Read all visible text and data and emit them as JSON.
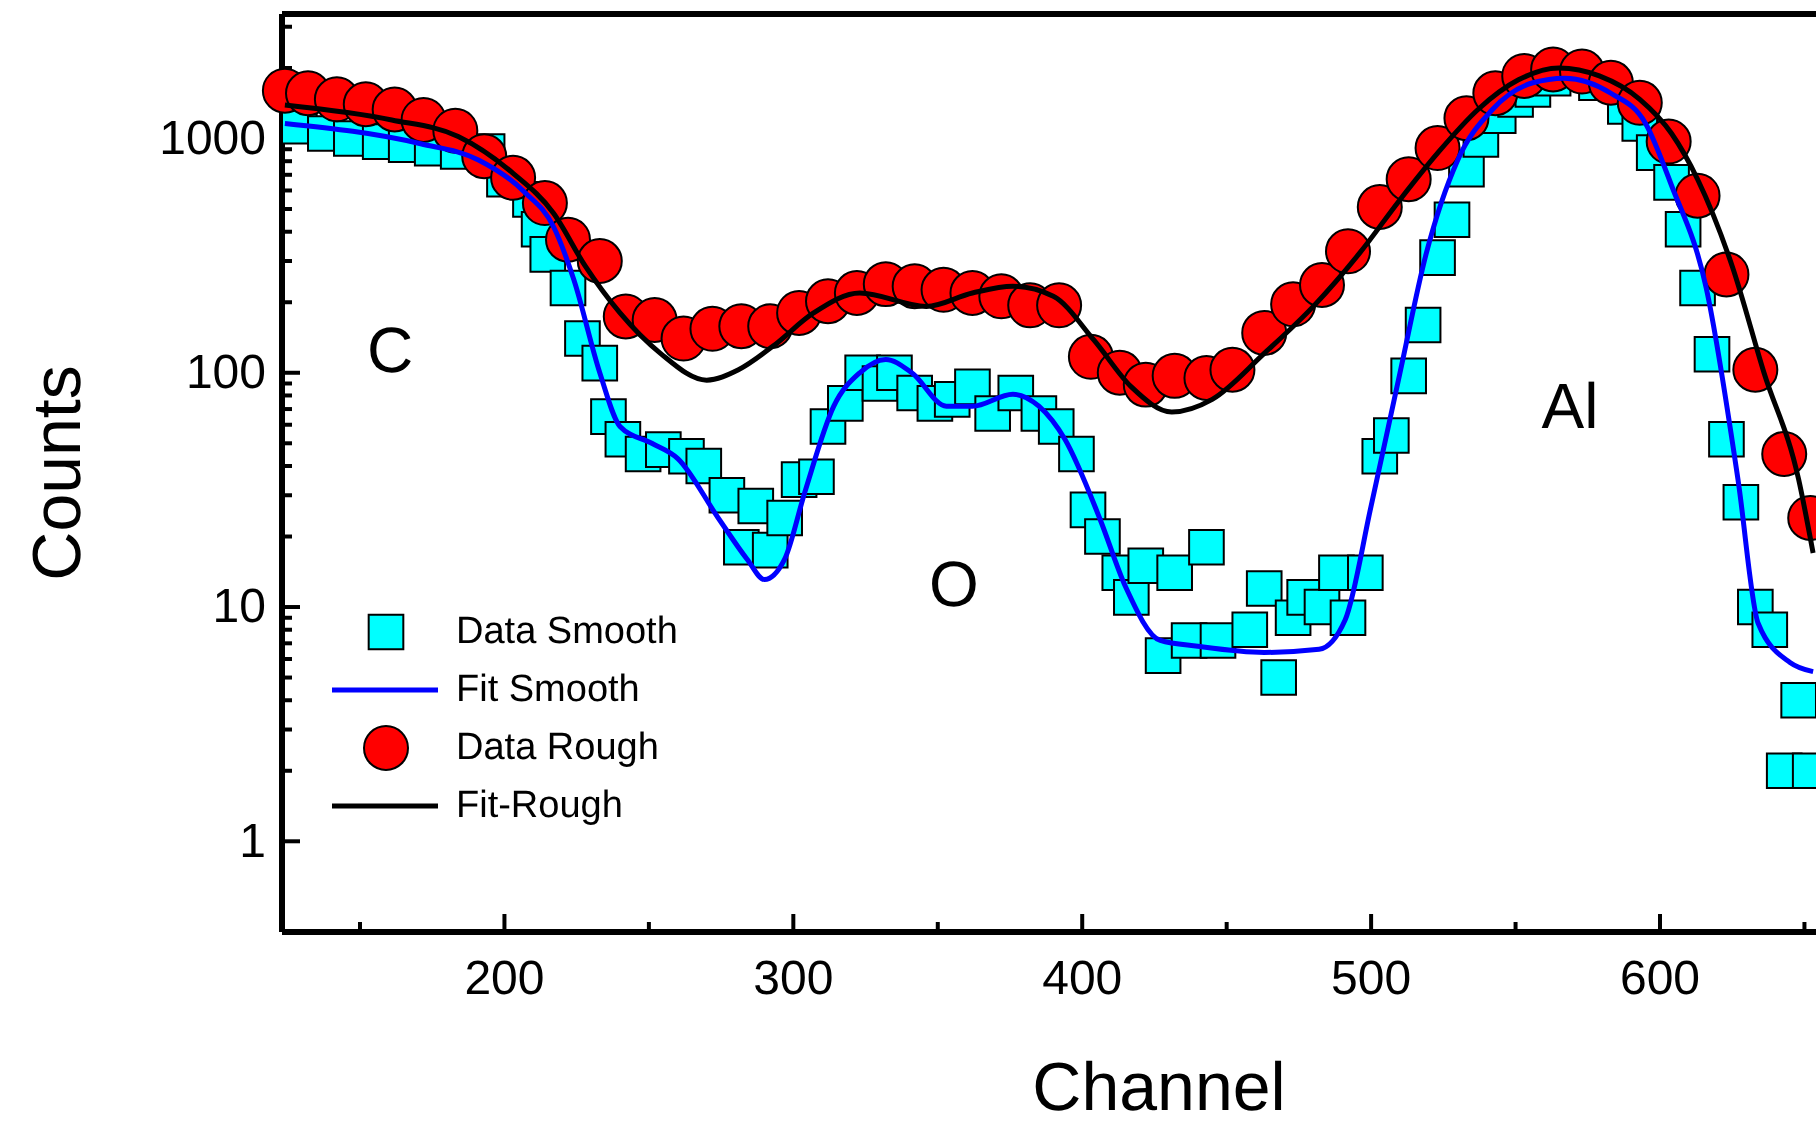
{
  "chart_data": {
    "type": "scatter",
    "xlabel": "Channel",
    "ylabel": "Counts",
    "log": "y",
    "grid": false,
    "legend": "bottom left",
    "xlim": [
      123,
      654
    ],
    "ylim": [
      0.41,
      3400
    ],
    "xticks": [
      {
        "value": 150,
        "label": null
      },
      200,
      {
        "value": 250,
        "label": null
      },
      300,
      {
        "value": 350,
        "label": null
      },
      400,
      {
        "value": 450,
        "label": null
      },
      500,
      {
        "value": 550,
        "label": null
      },
      600,
      {
        "value": 650,
        "label": null
      }
    ],
    "yticks": [
      1,
      {
        "value": 2,
        "label": null
      },
      {
        "value": 3,
        "label": null
      },
      {
        "value": 4,
        "label": null
      },
      {
        "value": 5,
        "label": null
      },
      {
        "value": 6,
        "label": null
      },
      {
        "value": 7,
        "label": null
      },
      {
        "value": 8,
        "label": null
      },
      {
        "value": 9,
        "label": null
      },
      10,
      {
        "value": 20,
        "label": null
      },
      {
        "value": 30,
        "label": null
      },
      {
        "value": 40,
        "label": null
      },
      {
        "value": 50,
        "label": null
      },
      {
        "value": 60,
        "label": null
      },
      {
        "value": 70,
        "label": null
      },
      {
        "value": 80,
        "label": null
      },
      {
        "value": 90,
        "label": null
      },
      100,
      {
        "value": 200,
        "label": null
      },
      {
        "value": 300,
        "label": null
      },
      {
        "value": 400,
        "label": null
      },
      {
        "value": 500,
        "label": null
      },
      {
        "value": 600,
        "label": null
      },
      {
        "value": 700,
        "label": null
      },
      {
        "value": 800,
        "label": null
      },
      {
        "value": 900,
        "label": null
      },
      1000,
      {
        "value": 2000,
        "label": null
      },
      {
        "value": 3000,
        "label": null
      }
    ],
    "annotations": [
      "C",
      "O",
      "Al"
    ],
    "series": [
      {
        "name": "Data Smooth",
        "marker": "square",
        "color": "#00ffff",
        "x": [
          129,
          138,
          147,
          157,
          166,
          175,
          184,
          194,
          200,
          209,
          212,
          215,
          222,
          227,
          233,
          236,
          241,
          248,
          255,
          263,
          269,
          277,
          282,
          287,
          292,
          297,
          302,
          308,
          312,
          318,
          324,
          330,
          335,
          342,
          349,
          355,
          362,
          369,
          377,
          385,
          391,
          398,
          402,
          407,
          413,
          417,
          422,
          428,
          432,
          437,
          443,
          447,
          458,
          463,
          468,
          473,
          477,
          483,
          488,
          492,
          498,
          503,
          507,
          513,
          518,
          523,
          528,
          533,
          538,
          544,
          550,
          556,
          563,
          578,
          588,
          593,
          598,
          604,
          608,
          613,
          618,
          623,
          628,
          633,
          638,
          643,
          648,
          652
        ],
        "values": [
          1130,
          1050,
          1000,
          970,
          940,
          910,
          880,
          880,
          670,
          550,
          410,
          320,
          230,
          140,
          110,
          65,
          52,
          45,
          47,
          44,
          40,
          30,
          18,
          27,
          17.5,
          24,
          35,
          36,
          59,
          74,
          100,
          90,
          100,
          82,
          74,
          77,
          87,
          67,
          82,
          67,
          59,
          45,
          26,
          20,
          14,
          11,
          15,
          6.2,
          14,
          7.2,
          18,
          7.2,
          8,
          12,
          5,
          9,
          11,
          10,
          14,
          9,
          14,
          44,
          54,
          97,
          160,
          310,
          450,
          740,
          990,
          1250,
          1470,
          1620,
          1810,
          1730,
          1370,
          1160,
          870,
          650,
          410,
          230,
          120,
          52,
          28,
          10,
          8,
          2,
          4,
          2
        ]
      },
      {
        "name": "Fit Smooth",
        "type": "line",
        "marker": "none",
        "line_style": "solid",
        "color": "#0000ff",
        "x": [
          124,
          171,
          191,
          207,
          217,
          224,
          233,
          240,
          251,
          260,
          274,
          284,
          290,
          297,
          304,
          314,
          323,
          332,
          341,
          353,
          362,
          376,
          385,
          394,
          406,
          415,
          427,
          440,
          463,
          482,
          491,
          500,
          510,
          519,
          530,
          542,
          556,
          567,
          583,
          595,
          604,
          616,
          627,
          634,
          645,
          653
        ],
        "values": [
          1160,
          950,
          810,
          590,
          420,
          250,
          100,
          59,
          50,
          43,
          24,
          16,
          13.1,
          16,
          31,
          72,
          100,
          114,
          100,
          72,
          72,
          81,
          72,
          52,
          24,
          12.2,
          7.2,
          6.8,
          6.4,
          6.6,
          8.8,
          27,
          100,
          320,
          810,
          1330,
          1730,
          1810,
          1560,
          1160,
          630,
          230,
          35,
          8.5,
          5.8,
          5.3
        ]
      },
      {
        "name": "Data Rough",
        "marker": "circle",
        "color": "#ff0000",
        "x": [
          124,
          132,
          142,
          152,
          162,
          172,
          183,
          193,
          203,
          214,
          222,
          233,
          242,
          252,
          262,
          272,
          282,
          292,
          302,
          312,
          322,
          332,
          342,
          352,
          362,
          372,
          382,
          392,
          403,
          413,
          422,
          432,
          443,
          452,
          463,
          473,
          483,
          492,
          503,
          513,
          523,
          533,
          543,
          553,
          563,
          573,
          583,
          593,
          603,
          613,
          623,
          633,
          643,
          652
        ],
        "values": [
          1600,
          1560,
          1470,
          1400,
          1330,
          1200,
          1080,
          840,
          680,
          530,
          370,
          300,
          174,
          168,
          140,
          154,
          158,
          158,
          180,
          202,
          219,
          239,
          234,
          226,
          219,
          212,
          194,
          194,
          117,
          100,
          89,
          97,
          95,
          103,
          148,
          196,
          237,
          330,
          510,
          670,
          910,
          1220,
          1560,
          1850,
          1970,
          1930,
          1730,
          1420,
          970,
          570,
          263,
          103,
          45,
          24
        ]
      },
      {
        "name": "Fit-Rough",
        "type": "line",
        "marker": "none",
        "line_style": "solid",
        "color": "#000000",
        "x": [
          124,
          161,
          184,
          203,
          217,
          228,
          240,
          254,
          270,
          281,
          293,
          307,
          323,
          346,
          362,
          376,
          390,
          404,
          417,
          431,
          445,
          463,
          480,
          496,
          510,
          523,
          537,
          551,
          565,
          579,
          593,
          604,
          613,
          625,
          636,
          648,
          653
        ],
        "values": [
          1390,
          1200,
          1020,
          710,
          480,
          285,
          180,
          121,
          93,
          103,
          130,
          180,
          219,
          192,
          219,
          234,
          212,
          138,
          87,
          68,
          77,
          121,
          192,
          324,
          548,
          866,
          1330,
          1780,
          2000,
          1850,
          1470,
          1050,
          670,
          285,
          100,
          35,
          17
        ]
      }
    ]
  }
}
